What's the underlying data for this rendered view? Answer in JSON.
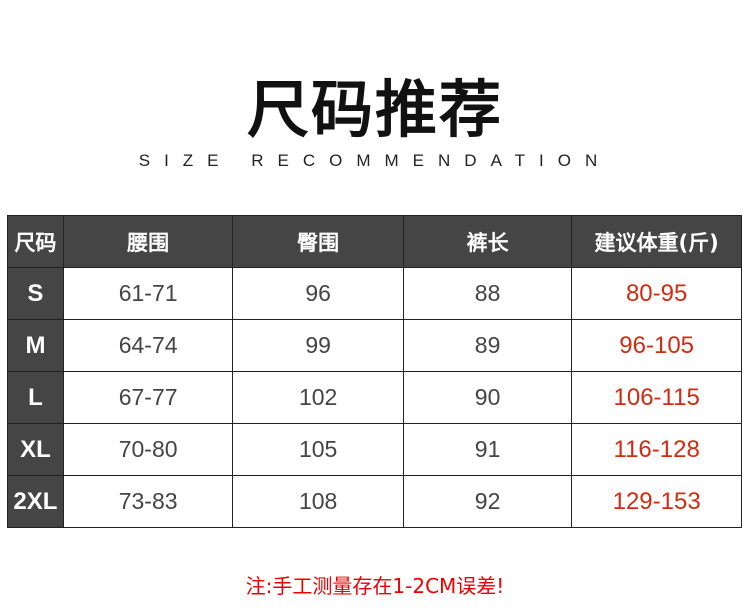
{
  "title": "尺码推荐",
  "subtitle": "SIZE RECOMMENDATION",
  "table": {
    "headers": [
      "尺码",
      "腰围",
      "臀围",
      "裤长",
      "建议体重(斤)"
    ],
    "rows": [
      {
        "size": "S",
        "waist": "61-71",
        "hip": "96",
        "length": "88",
        "weight": "80-95"
      },
      {
        "size": "M",
        "waist": "64-74",
        "hip": "99",
        "length": "89",
        "weight": "96-105"
      },
      {
        "size": "L",
        "waist": "67-77",
        "hip": "102",
        "length": "90",
        "weight": "106-115"
      },
      {
        "size": "XL",
        "waist": "70-80",
        "hip": "105",
        "length": "91",
        "weight": "116-128"
      },
      {
        "size": "2XL",
        "waist": "73-83",
        "hip": "108",
        "length": "92",
        "weight": "129-153"
      }
    ]
  },
  "note": "注:手工测量存在1-2CM误差!",
  "colors": {
    "header_bg": "#454545",
    "weight_text": "#d42a10",
    "note_text": "#e00000"
  }
}
